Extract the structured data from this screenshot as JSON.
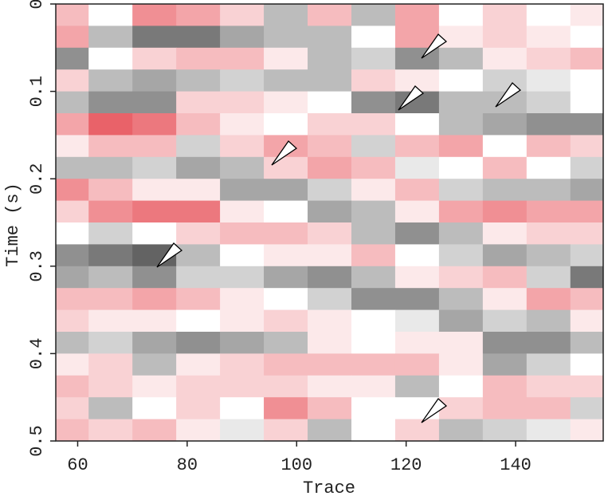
{
  "chart_data": {
    "type": "heatmap",
    "xlabel": "Trace",
    "ylabel": "Time (s)",
    "x": [
      58,
      66,
      74,
      82,
      90,
      98,
      106,
      114,
      122,
      130,
      138,
      146,
      154
    ],
    "y": [
      0.0125,
      0.0375,
      0.0625,
      0.0875,
      0.1125,
      0.1375,
      0.1625,
      0.1875,
      0.2125,
      0.2375,
      0.2625,
      0.2875,
      0.3125,
      0.3375,
      0.3625,
      0.3875,
      0.4125,
      0.4375,
      0.4625,
      0.4875
    ],
    "z": [
      [
        0.3,
        0,
        0.5,
        0.4,
        0.2,
        -0.3,
        0.3,
        -0.3,
        0.4,
        0,
        0.2,
        0,
        0.1
      ],
      [
        0.4,
        -0.3,
        -0.6,
        -0.6,
        -0.4,
        -0.3,
        -0.3,
        0,
        0.4,
        0.1,
        0.2,
        0.1,
        0
      ],
      [
        -0.5,
        0,
        0.2,
        0.3,
        0.3,
        0.1,
        -0.3,
        -0.2,
        -0.5,
        -0.3,
        0.1,
        0.2,
        0.3
      ],
      [
        0.2,
        -0.3,
        -0.4,
        -0.3,
        -0.2,
        -0.3,
        -0.3,
        0.2,
        0.1,
        0,
        -0.2,
        -0.1,
        0
      ],
      [
        -0.3,
        -0.5,
        -0.5,
        0.2,
        0.2,
        0.1,
        0,
        -0.5,
        -0.6,
        -0.3,
        -0.3,
        -0.2,
        0
      ],
      [
        0.4,
        0.7,
        0.6,
        0.3,
        0.1,
        0,
        0.2,
        0.2,
        0,
        -0.3,
        -0.4,
        -0.5,
        -0.5
      ],
      [
        0.1,
        0.3,
        0.3,
        -0.2,
        0.2,
        0.4,
        0.3,
        -0.2,
        0.3,
        0.4,
        0,
        0.3,
        0.2
      ],
      [
        -0.3,
        -0.3,
        -0.2,
        -0.4,
        -0.3,
        0.2,
        0.4,
        0.3,
        -0.1,
        0,
        0.3,
        0,
        -0.2
      ],
      [
        0.5,
        0.3,
        0.1,
        0.1,
        -0.4,
        -0.4,
        -0.2,
        0.1,
        0.3,
        -0.2,
        -0.3,
        -0.3,
        -0.4
      ],
      [
        0.2,
        0.5,
        0.6,
        0.6,
        0.1,
        0,
        -0.4,
        -0.3,
        0.1,
        0.4,
        0.5,
        0.4,
        0.4
      ],
      [
        0,
        -0.2,
        0,
        0.2,
        0.3,
        0.3,
        0.2,
        -0.3,
        -0.5,
        -0.3,
        0.1,
        0.2,
        0.2
      ],
      [
        -0.5,
        -0.6,
        -0.7,
        -0.3,
        0,
        0.1,
        0.1,
        0.3,
        0,
        -0.2,
        -0.4,
        -0.3,
        -0.2
      ],
      [
        -0.4,
        -0.3,
        -0.5,
        -0.2,
        -0.2,
        -0.4,
        -0.5,
        -0.3,
        0.1,
        0.2,
        0.3,
        -0.2,
        -0.6
      ],
      [
        0.3,
        0.3,
        0.4,
        0.3,
        0.1,
        0,
        -0.2,
        -0.5,
        -0.5,
        -0.3,
        0.1,
        0.4,
        0.3
      ],
      [
        0.2,
        0.1,
        0.1,
        0,
        0.1,
        0.2,
        0.1,
        0,
        -0.1,
        -0.4,
        -0.2,
        -0.3,
        0.1
      ],
      [
        -0.3,
        -0.2,
        -0.4,
        -0.5,
        -0.4,
        -0.3,
        0.1,
        0,
        0.1,
        0.1,
        -0.5,
        -0.5,
        -0.3
      ],
      [
        0.1,
        0.2,
        -0.3,
        0.1,
        0.2,
        0.3,
        0.3,
        0.3,
        0.3,
        0.1,
        -0.4,
        -0.2,
        0
      ],
      [
        0.3,
        0.2,
        0.1,
        0.2,
        0.2,
        0.2,
        0.1,
        0.1,
        -0.3,
        0,
        0.3,
        0.2,
        0.2
      ],
      [
        0.2,
        -0.3,
        0,
        0.2,
        0,
        0.5,
        0.3,
        0,
        0,
        0.2,
        0.3,
        0.3,
        -0.2
      ],
      [
        0.3,
        0.2,
        0.3,
        0.1,
        -0.1,
        0.2,
        -0.3,
        0,
        0.2,
        -0.3,
        -0.2,
        -0.1,
        0.1
      ]
    ],
    "positive_color": "#e01e28",
    "negative_color": "#202020",
    "xlim": [
      56,
      156
    ],
    "ylim": [
      0,
      0.5
    ],
    "xticks": [
      60,
      80,
      100,
      120,
      140
    ],
    "yticks": [
      0,
      0.1,
      0.2,
      0.3,
      0.4,
      0.5
    ]
  }
}
